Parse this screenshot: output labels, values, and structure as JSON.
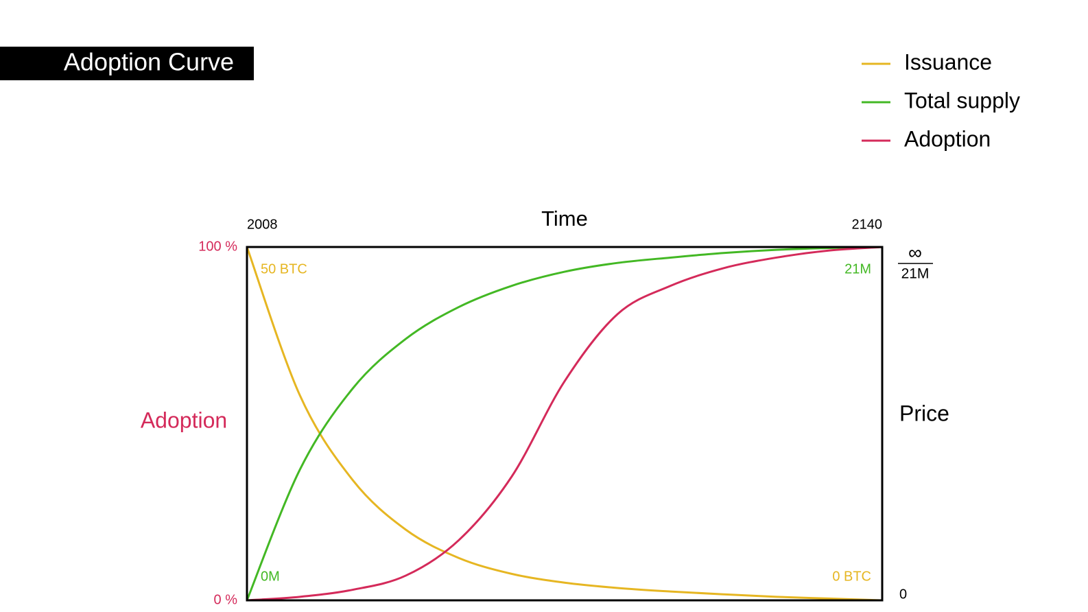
{
  "chart_data": {
    "type": "line",
    "title": "Adoption Curve",
    "x_label": "Time",
    "y_label": "Adoption",
    "y2_label": "Price",
    "x": [
      2008,
      2019,
      2030,
      2041,
      2052,
      2063,
      2074,
      2085,
      2096,
      2107,
      2118,
      2129,
      2140
    ],
    "xlim": [
      2008,
      2140
    ],
    "xticks": [
      2008,
      2140
    ],
    "ylim": [
      0,
      100
    ],
    "yticks": [
      {
        "value": 0,
        "label": "0 %"
      },
      {
        "value": 100,
        "label": "100 %"
      }
    ],
    "y2lim": [
      0,
      100
    ],
    "y2ticks": [
      0,
      {
        "value": 100,
        "label": "∞"
      }
    ],
    "y2_top_note": "21M",
    "series": [
      {
        "name": "Issuance",
        "color": "#e6b622",
        "start_label": "50 BTC",
        "end_label": "0 BTC",
        "values": [
          100,
          58,
          34,
          20,
          12,
          7.5,
          5,
          3.5,
          2.5,
          1.7,
          1,
          0.5,
          0
        ]
      },
      {
        "name": "Total supply",
        "color": "#43b824",
        "start_label": "0M",
        "end_label": "21M",
        "values": [
          0,
          37,
          60,
          74,
          83,
          89,
          93,
          95.5,
          97,
          98.3,
          99.2,
          99.7,
          100
        ]
      },
      {
        "name": "Adoption",
        "color": "#d42a5a",
        "values": [
          0,
          1,
          3,
          7,
          17,
          35,
          62,
          81,
          89,
          94,
          97,
          99,
          100
        ]
      }
    ]
  }
}
